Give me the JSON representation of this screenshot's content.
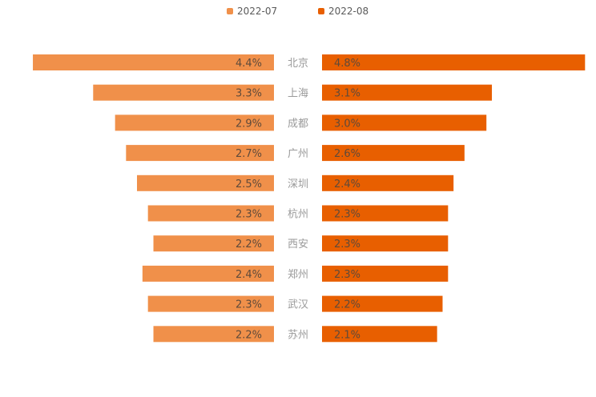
{
  "chart_data": {
    "type": "bar",
    "categories": [
      "北京",
      "上海",
      "成都",
      "广州",
      "深圳",
      "杭州",
      "西安",
      "郑州",
      "武汉",
      "苏州"
    ],
    "series": [
      {
        "name": "2022-07",
        "values": [
          4.4,
          3.3,
          2.9,
          2.7,
          2.5,
          2.3,
          2.2,
          2.4,
          2.3,
          2.2
        ],
        "labels": [
          "4.4%",
          "3.3%",
          "2.9%",
          "2.7%",
          "2.5%",
          "2.3%",
          "2.2%",
          "2.4%",
          "2.3%",
          "2.2%"
        ]
      },
      {
        "name": "2022-08",
        "values": [
          4.8,
          3.1,
          3.0,
          2.6,
          2.4,
          2.3,
          2.3,
          2.3,
          2.2,
          2.1
        ],
        "labels": [
          "4.8%",
          "3.1%",
          "3.0%",
          "2.6%",
          "2.4%",
          "2.3%",
          "2.3%",
          "2.3%",
          "2.2%",
          "2.1%"
        ]
      }
    ],
    "colors": {
      "2022-07": "#f0904a",
      "2022-08": "#e85f00"
    },
    "legend_position": "top-center",
    "grid": false
  }
}
